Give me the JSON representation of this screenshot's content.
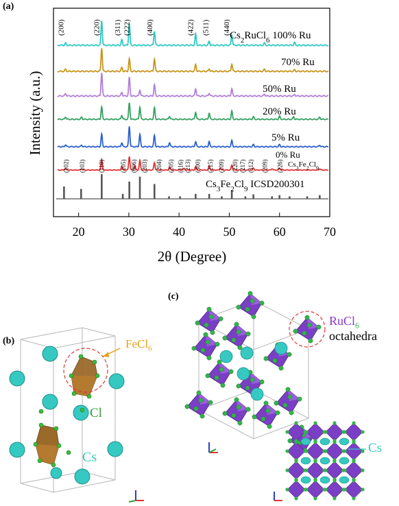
{
  "panels": {
    "a": {
      "label": "(a)"
    },
    "b": {
      "label": "(b)"
    },
    "c": {
      "label": "(c)"
    }
  },
  "chart_data": {
    "type": "line",
    "xlabel": "2θ (Degree)",
    "ylabel": "Intensity (a.u.)",
    "xlim": [
      15,
      70
    ],
    "xticks": [
      20,
      30,
      40,
      50,
      60,
      70
    ],
    "grid": false,
    "series": [
      {
        "name": "Cs2RuCl6 100% Ru",
        "label_main": "Cs",
        "label_sub1": "2",
        "label_mid": "RuCl",
        "label_sub2": "6",
        "label_tail": " 100% Ru",
        "color": "#2ec9c4",
        "peaks": [
          {
            "x": 17.4,
            "h": 0.08
          },
          {
            "x": 24.6,
            "h": 0.95
          },
          {
            "x": 28.6,
            "h": 0.2
          },
          {
            "x": 30.1,
            "h": 0.85
          },
          {
            "x": 35.1,
            "h": 0.55
          },
          {
            "x": 43.3,
            "h": 0.42
          },
          {
            "x": 46.0,
            "h": 0.15
          },
          {
            "x": 50.5,
            "h": 0.4
          },
          {
            "x": 57.0,
            "h": 0.08
          },
          {
            "x": 63.0,
            "h": 0.1
          }
        ]
      },
      {
        "name": "70% Ru",
        "label_main": "70% Ru",
        "color": "#c8951a",
        "peaks": [
          {
            "x": 17.4,
            "h": 0.08
          },
          {
            "x": 24.6,
            "h": 0.95
          },
          {
            "x": 28.6,
            "h": 0.15
          },
          {
            "x": 30.1,
            "h": 0.5
          },
          {
            "x": 35.1,
            "h": 0.5
          },
          {
            "x": 43.3,
            "h": 0.28
          },
          {
            "x": 46.0,
            "h": 0.1
          },
          {
            "x": 50.5,
            "h": 0.3
          },
          {
            "x": 57.0,
            "h": 0.08
          },
          {
            "x": 63.0,
            "h": 0.06
          }
        ]
      },
      {
        "name": "50% Ru",
        "label_main": "50% Ru",
        "color": "#b07ed9",
        "peaks": [
          {
            "x": 17.4,
            "h": 0.1
          },
          {
            "x": 24.6,
            "h": 0.95
          },
          {
            "x": 28.6,
            "h": 0.15
          },
          {
            "x": 30.1,
            "h": 0.75
          },
          {
            "x": 32.2,
            "h": 0.25
          },
          {
            "x": 35.1,
            "h": 0.45
          },
          {
            "x": 43.3,
            "h": 0.3
          },
          {
            "x": 46.0,
            "h": 0.12
          },
          {
            "x": 50.5,
            "h": 0.3
          },
          {
            "x": 57.0,
            "h": 0.08
          },
          {
            "x": 63.0,
            "h": 0.06
          }
        ]
      },
      {
        "name": "20% Ru",
        "label_main": "20% Ru",
        "color": "#36a060",
        "peaks": [
          {
            "x": 17.4,
            "h": 0.12
          },
          {
            "x": 20.6,
            "h": 0.1
          },
          {
            "x": 24.6,
            "h": 0.6
          },
          {
            "x": 28.6,
            "h": 0.2
          },
          {
            "x": 30.1,
            "h": 0.8
          },
          {
            "x": 32.2,
            "h": 0.6
          },
          {
            "x": 35.1,
            "h": 0.55
          },
          {
            "x": 38.1,
            "h": 0.15
          },
          {
            "x": 43.3,
            "h": 0.35
          },
          {
            "x": 46.0,
            "h": 0.3
          },
          {
            "x": 50.5,
            "h": 0.4
          },
          {
            "x": 54.8,
            "h": 0.12
          },
          {
            "x": 60.0,
            "h": 0.15
          },
          {
            "x": 62.8,
            "h": 0.12
          },
          {
            "x": 68.0,
            "h": 0.1
          }
        ]
      },
      {
        "name": "5% Ru",
        "label_main": "5% Ru",
        "color": "#2a5fd0",
        "peaks": [
          {
            "x": 17.4,
            "h": 0.1
          },
          {
            "x": 20.6,
            "h": 0.08
          },
          {
            "x": 24.6,
            "h": 0.6
          },
          {
            "x": 28.6,
            "h": 0.2
          },
          {
            "x": 30.1,
            "h": 1.0
          },
          {
            "x": 32.2,
            "h": 0.6
          },
          {
            "x": 35.1,
            "h": 0.55
          },
          {
            "x": 38.1,
            "h": 0.2
          },
          {
            "x": 43.3,
            "h": 0.25
          },
          {
            "x": 46.0,
            "h": 0.25
          },
          {
            "x": 50.5,
            "h": 0.3
          },
          {
            "x": 54.8,
            "h": 0.1
          },
          {
            "x": 60.0,
            "h": 0.1
          },
          {
            "x": 68.0,
            "h": 0.08
          }
        ]
      },
      {
        "name": "0% Ru Cs3Fe2Cl9",
        "label_main": "0% Ru",
        "label2_main": "Cs",
        "label2_sub1": "3",
        "label2_mid": "Fe",
        "label2_sub2": "2",
        "label2_mid2": "Cl",
        "label2_sub3": "9",
        "color": "#e03232",
        "peaks": [
          {
            "x": 17.4,
            "h": 0.12
          },
          {
            "x": 20.6,
            "h": 0.1
          },
          {
            "x": 24.6,
            "h": 0.75
          },
          {
            "x": 28.6,
            "h": 0.25
          },
          {
            "x": 30.1,
            "h": 1.0
          },
          {
            "x": 31.2,
            "h": 0.3
          },
          {
            "x": 32.2,
            "h": 0.7
          },
          {
            "x": 35.1,
            "h": 0.55
          },
          {
            "x": 38.1,
            "h": 0.2
          },
          {
            "x": 41.0,
            "h": 0.12
          },
          {
            "x": 43.3,
            "h": 0.25
          },
          {
            "x": 46.0,
            "h": 0.3
          },
          {
            "x": 48.2,
            "h": 0.15
          },
          {
            "x": 50.5,
            "h": 0.35
          },
          {
            "x": 54.8,
            "h": 0.15
          },
          {
            "x": 58.5,
            "h": 0.1
          },
          {
            "x": 60.0,
            "h": 0.15
          },
          {
            "x": 68.0,
            "h": 0.1
          }
        ]
      },
      {
        "name": "Cs3Fe2Cl9 ICSD200301",
        "label_main": "Cs",
        "label_sub1": "3",
        "label_mid": "Fe",
        "label_sub2": "2",
        "label_mid2": "Cl",
        "label_sub3": "9",
        "label_tail": " ICSD200301",
        "color": "#555555",
        "sticks": true,
        "peaks": [
          {
            "x": 17.1,
            "h": 0.5
          },
          {
            "x": 20.5,
            "h": 0.4
          },
          {
            "x": 24.6,
            "h": 1.0
          },
          {
            "x": 28.8,
            "h": 0.2
          },
          {
            "x": 30.1,
            "h": 0.7
          },
          {
            "x": 32.2,
            "h": 0.9
          },
          {
            "x": 35.1,
            "h": 0.6
          },
          {
            "x": 38.0,
            "h": 0.1
          },
          {
            "x": 40.2,
            "h": 0.1
          },
          {
            "x": 43.3,
            "h": 0.2
          },
          {
            "x": 46.0,
            "h": 0.2
          },
          {
            "x": 48.5,
            "h": 0.1
          },
          {
            "x": 50.5,
            "h": 0.35
          },
          {
            "x": 53.2,
            "h": 0.1
          },
          {
            "x": 54.8,
            "h": 0.18
          },
          {
            "x": 58.5,
            "h": 0.1
          },
          {
            "x": 60.0,
            "h": 0.15
          },
          {
            "x": 62.0,
            "h": 0.1
          },
          {
            "x": 65.5,
            "h": 0.1
          },
          {
            "x": 68.0,
            "h": 0.15
          }
        ]
      }
    ],
    "cubic_hkl": [
      {
        "x": 17.5,
        "label": "(200)"
      },
      {
        "x": 24.6,
        "label": "(220)"
      },
      {
        "x": 28.8,
        "label": "(311)"
      },
      {
        "x": 30.6,
        "label": "(222)"
      },
      {
        "x": 35.2,
        "label": "(400)"
      },
      {
        "x": 43.3,
        "label": "(422)"
      },
      {
        "x": 46.3,
        "label": "(511)"
      },
      {
        "x": 50.5,
        "label": "(440)"
      }
    ],
    "hex_hkl": [
      {
        "x": 17.4,
        "label": "(102)"
      },
      {
        "x": 20.6,
        "label": "(103)"
      },
      {
        "x": 24.4,
        "label": "(110)"
      },
      {
        "x": 28.8,
        "label": "(105)"
      },
      {
        "x": 30.9,
        "label": "(006)"
      },
      {
        "x": 33.0,
        "label": "(203)"
      },
      {
        "x": 35.9,
        "label": "(204)"
      },
      {
        "x": 38.3,
        "label": "(205)"
      },
      {
        "x": 40.2,
        "label": "(116)"
      },
      {
        "x": 41.6,
        "label": "(213)"
      },
      {
        "x": 43.6,
        "label": "(300)"
      },
      {
        "x": 46.1,
        "label": "(215)"
      },
      {
        "x": 48.3,
        "label": "(109)"
      },
      {
        "x": 51.0,
        "label": "(220)"
      },
      {
        "x": 52.5,
        "label": "(217)"
      },
      {
        "x": 54.2,
        "label": "(312)"
      },
      {
        "x": 57.0,
        "label": "(209)"
      },
      {
        "x": 60.0,
        "label": "(226)"
      }
    ]
  },
  "structure_b": {
    "label_fecl6_main": "Fe",
    "label_fecl6_sub": "Cl",
    "label_fecl6_num": "6",
    "label_cl": "Cl",
    "label_cs": "Cs",
    "colors": {
      "fecl6": "#e3a21a",
      "cl": "#2e9e3a",
      "cs": "#35c9c2",
      "octa": "#9a6a2a",
      "ring": "#e03232"
    }
  },
  "structure_c": {
    "label_rucl6_main": "Ru",
    "label_rucl6_sub": "Cl",
    "label_rucl6_num": "6",
    "label_octahedra": "octahedra",
    "label_cs": "Cs",
    "colors": {
      "ru": "#8a35c9",
      "cl": "#33b44a",
      "cs": "#35c9c2",
      "octa": "#7a3fc4",
      "ring": "#e03232"
    }
  }
}
